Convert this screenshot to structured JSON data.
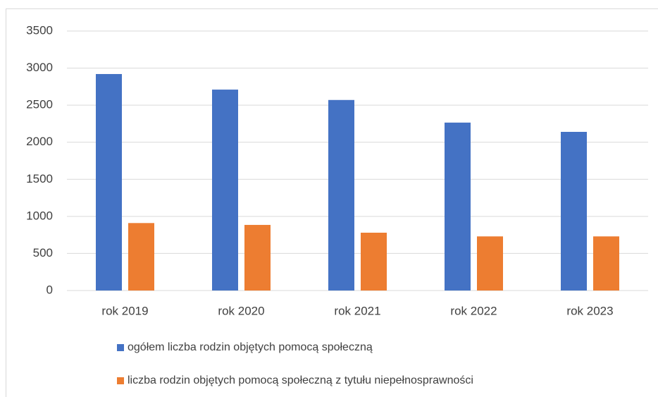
{
  "chart_data": {
    "type": "bar",
    "categories": [
      "rok 2019",
      "rok 2020",
      "rok 2021",
      "rok 2022",
      "rok 2023"
    ],
    "series": [
      {
        "name": "ogółem liczba rodzin objętych pomocą społeczną",
        "color": "#4472c4",
        "values": [
          2920,
          2710,
          2570,
          2265,
          2140
        ]
      },
      {
        "name": "liczba rodzin objętych pomocą społeczną z tytułu niepełnosprawności",
        "color": "#ed7d31",
        "values": [
          910,
          885,
          780,
          730,
          730
        ]
      }
    ],
    "ylim": [
      0,
      3500
    ],
    "yticks": [
      0,
      500,
      1000,
      1500,
      2000,
      2500,
      3000,
      3500
    ],
    "grid": true,
    "legend": "bottom"
  }
}
